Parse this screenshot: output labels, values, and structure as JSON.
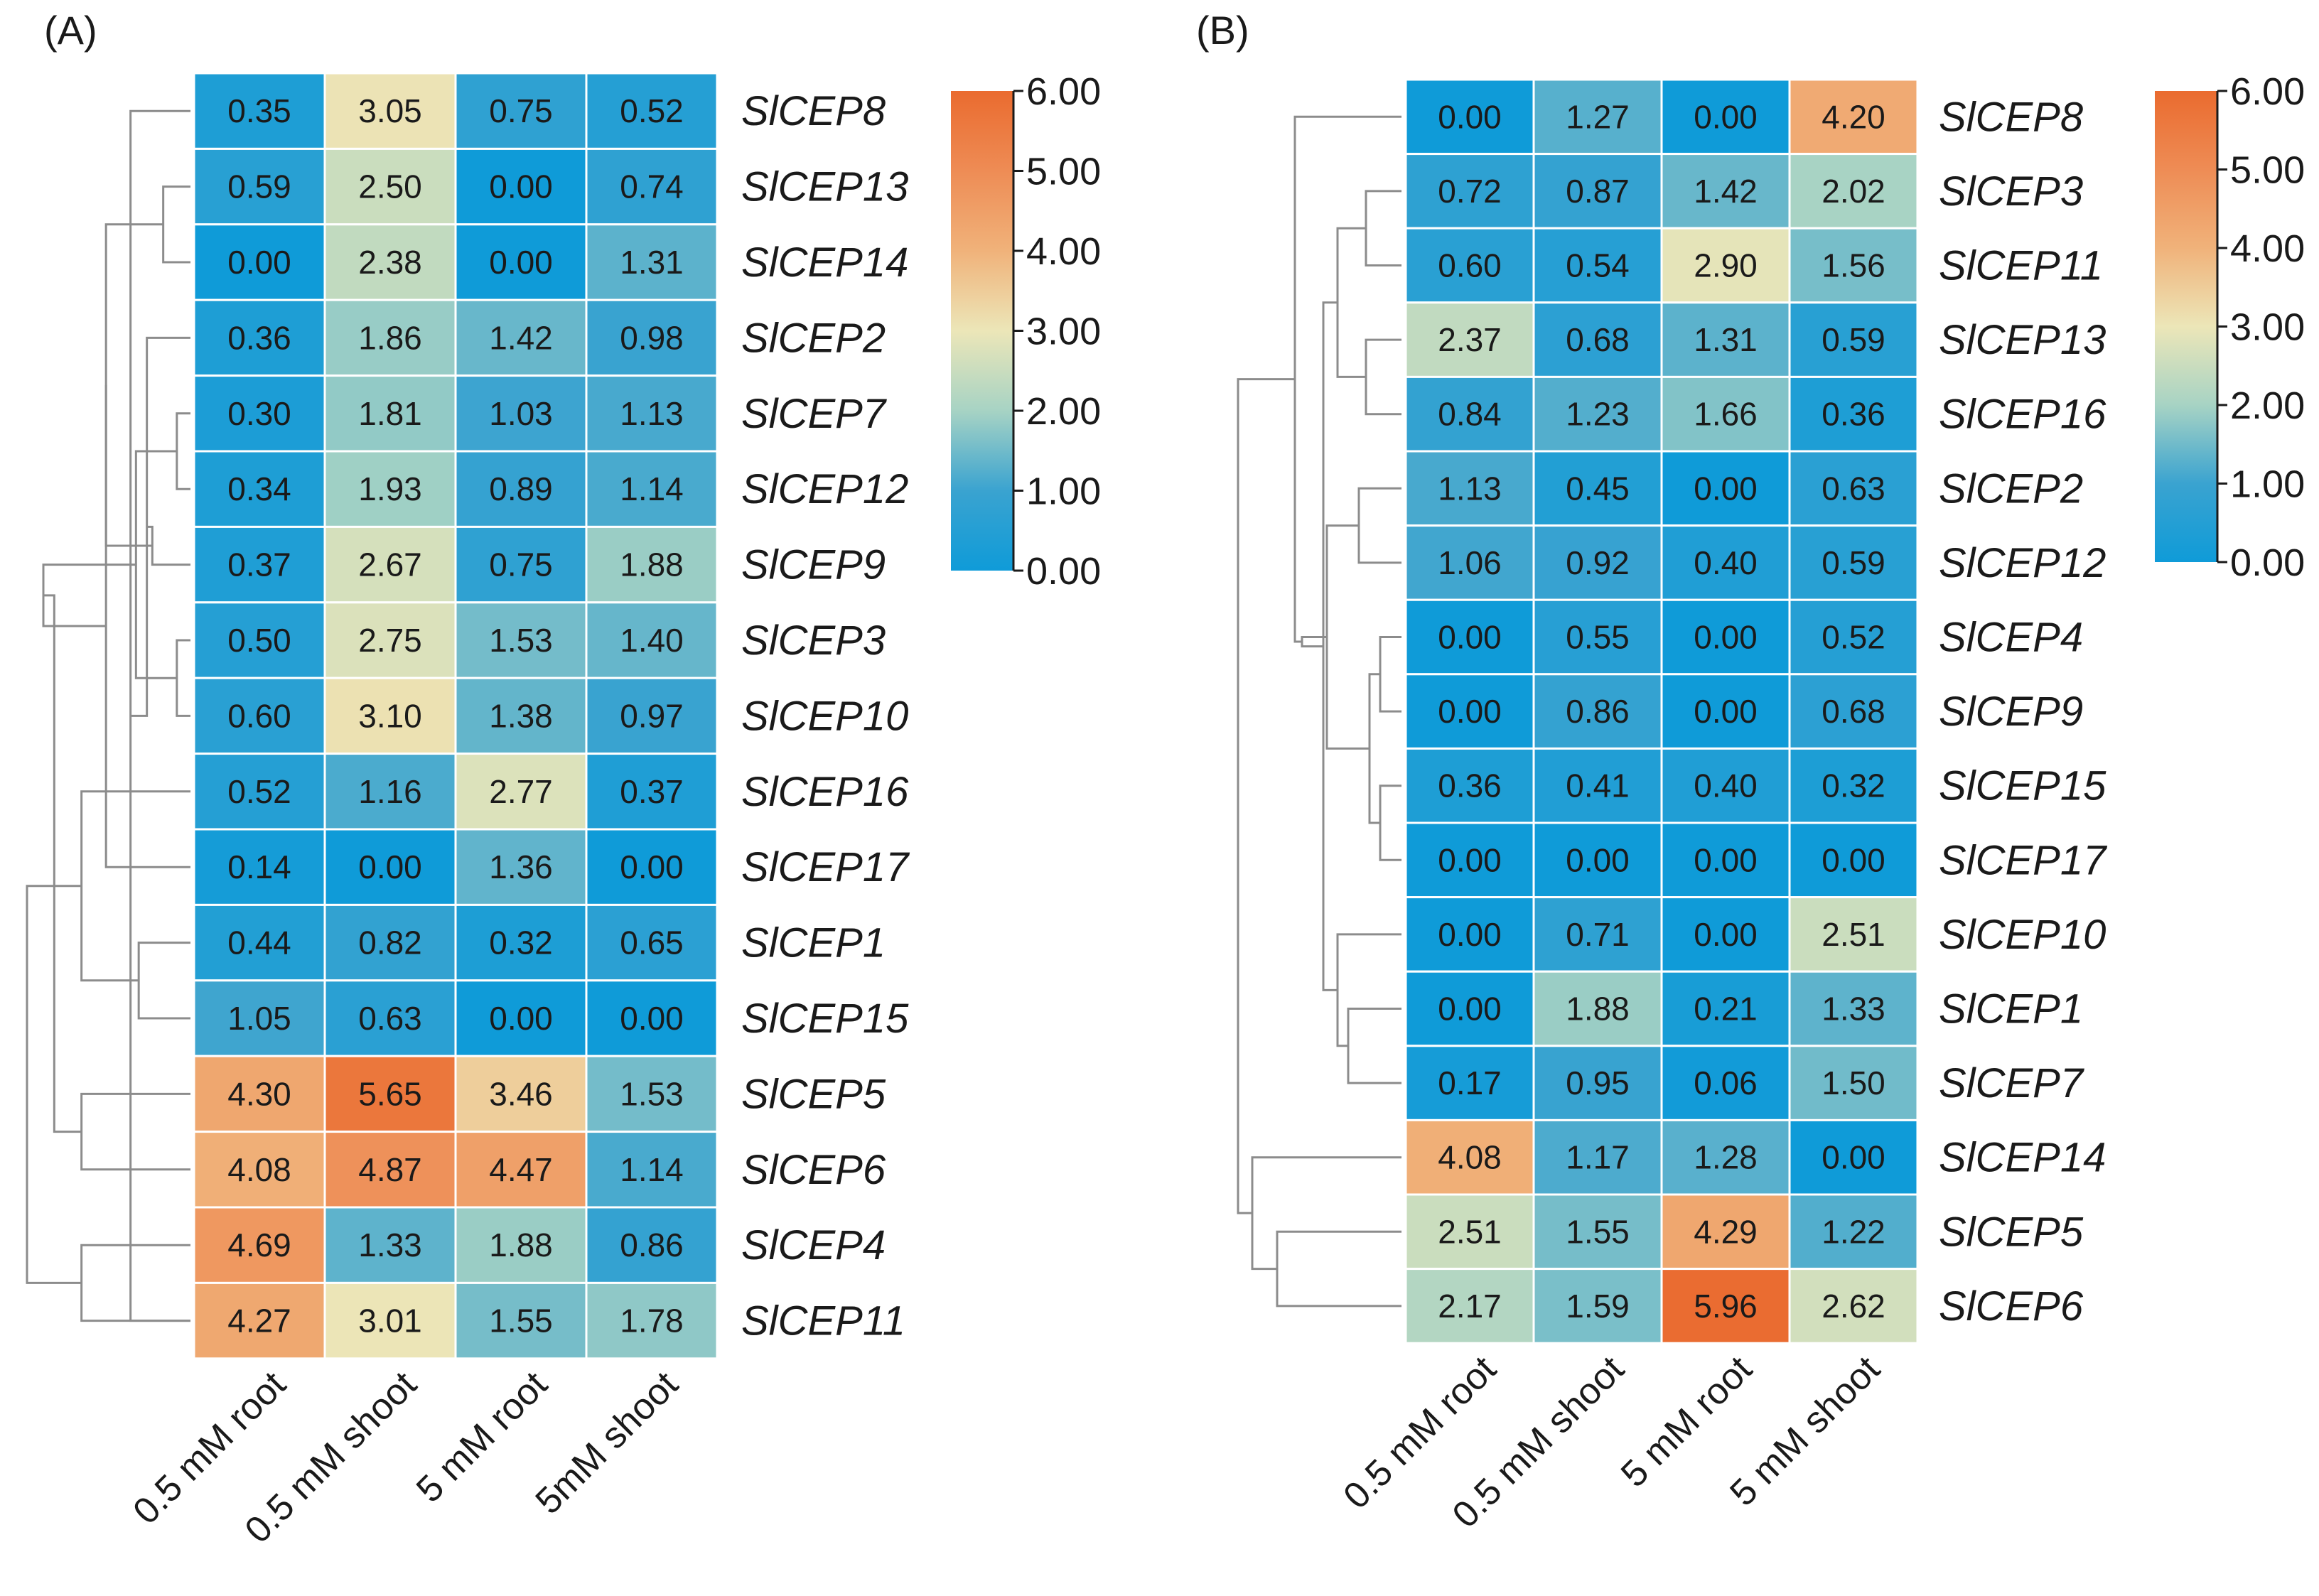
{
  "chart_data": [
    {
      "type": "heatmap",
      "panel_label": "(A)",
      "columns": [
        "0.5 mM root",
        "0.5 mM shoot",
        "5 mM root",
        "5mM shoot"
      ],
      "rows": [
        "SlCEP8",
        "SlCEP13",
        "SlCEP14",
        "SlCEP2",
        "SlCEP7",
        "SlCEP12",
        "SlCEP9",
        "SlCEP3",
        "SlCEP10",
        "SlCEP16",
        "SlCEP17",
        "SlCEP1",
        "SlCEP15",
        "SlCEP5",
        "SlCEP6",
        "SlCEP4",
        "SlCEP11"
      ],
      "values": [
        [
          0.35,
          3.05,
          0.75,
          0.52
        ],
        [
          0.59,
          2.5,
          0.0,
          0.74
        ],
        [
          0.0,
          2.38,
          0.0,
          1.31
        ],
        [
          0.36,
          1.86,
          1.42,
          0.98
        ],
        [
          0.3,
          1.81,
          1.03,
          1.13
        ],
        [
          0.34,
          1.93,
          0.89,
          1.14
        ],
        [
          0.37,
          2.67,
          0.75,
          1.88
        ],
        [
          0.5,
          2.75,
          1.53,
          1.4
        ],
        [
          0.6,
          3.1,
          1.38,
          0.97
        ],
        [
          0.52,
          1.16,
          2.77,
          0.37
        ],
        [
          0.14,
          0.0,
          1.36,
          0.0
        ],
        [
          0.44,
          0.82,
          0.32,
          0.65
        ],
        [
          1.05,
          0.63,
          0.0,
          0.0
        ],
        [
          4.3,
          5.65,
          3.46,
          1.53
        ],
        [
          4.08,
          4.87,
          4.47,
          1.14
        ],
        [
          4.69,
          1.33,
          1.88,
          0.86
        ],
        [
          4.27,
          3.01,
          1.55,
          1.78
        ]
      ],
      "colorbar": {
        "min": 0,
        "max": 6,
        "ticks": [
          "6.00",
          "5.00",
          "4.00",
          "3.00",
          "2.00",
          "1.00",
          "0.00"
        ]
      },
      "dendrogram": {
        "leaves": 17,
        "nodes": [
          [
            1,
            2,
            0.1
          ],
          [
            0,
            16,
            0.22
          ],
          [
            4,
            5,
            0.05
          ],
          [
            3,
            18,
            0.16
          ],
          [
            7,
            8,
            0.05
          ],
          [
            6,
            20,
            0.14
          ],
          [
            19,
            21,
            0.2
          ],
          [
            17,
            22,
            0.31
          ],
          [
            11,
            12,
            0.19
          ],
          [
            10,
            24,
            0.31
          ],
          [
            9,
            25,
            0.4
          ],
          [
            23,
            26,
            0.54
          ],
          [
            13,
            14,
            0.4
          ],
          [
            15,
            16,
            0.4
          ],
          [
            28,
            29,
            0.5
          ],
          [
            27,
            30,
            0.6
          ]
        ]
      }
    },
    {
      "type": "heatmap",
      "panel_label": "(B)",
      "columns": [
        "0.5 mM root",
        "0.5 mM shoot",
        "5 mM root",
        "5 mM shoot"
      ],
      "rows": [
        "SlCEP8",
        "SlCEP3",
        "SlCEP11",
        "SlCEP13",
        "SlCEP16",
        "SlCEP2",
        "SlCEP12",
        "SlCEP4",
        "SlCEP9",
        "SlCEP15",
        "SlCEP17",
        "SlCEP10",
        "SlCEP1",
        "SlCEP7",
        "SlCEP14",
        "SlCEP5",
        "SlCEP6"
      ],
      "values": [
        [
          0.0,
          1.27,
          0.0,
          4.2
        ],
        [
          0.72,
          0.87,
          1.42,
          2.02
        ],
        [
          0.6,
          0.54,
          2.9,
          1.56
        ],
        [
          2.37,
          0.68,
          1.31,
          0.59
        ],
        [
          0.84,
          1.23,
          1.66,
          0.36
        ],
        [
          1.13,
          0.45,
          0.0,
          0.63
        ],
        [
          1.06,
          0.92,
          0.4,
          0.59
        ],
        [
          0.0,
          0.55,
          0.0,
          0.52
        ],
        [
          0.0,
          0.86,
          0.0,
          0.68
        ],
        [
          0.36,
          0.41,
          0.4,
          0.32
        ],
        [
          0.0,
          0.0,
          0.0,
          0.0
        ],
        [
          0.0,
          0.71,
          0.0,
          2.51
        ],
        [
          0.0,
          1.88,
          0.21,
          1.33
        ],
        [
          0.17,
          0.95,
          0.06,
          1.5
        ],
        [
          4.08,
          1.17,
          1.28,
          0.0
        ],
        [
          2.51,
          1.55,
          4.29,
          1.22
        ],
        [
          2.17,
          1.59,
          5.96,
          2.62
        ]
      ],
      "colorbar": {
        "min": 0,
        "max": 6,
        "ticks": [
          "6.00",
          "5.00",
          "4.00",
          "3.00",
          "2.00",
          "1.00",
          "0.00"
        ]
      },
      "dendrogram": {
        "leaves": 17,
        "nodes": [
          [
            7,
            8,
            0.06
          ],
          [
            9,
            10,
            0.06
          ],
          [
            17,
            18,
            0.09
          ],
          [
            1,
            2,
            0.1
          ],
          [
            3,
            4,
            0.1
          ],
          [
            12,
            13,
            0.15
          ],
          [
            5,
            6,
            0.12
          ],
          [
            11,
            22,
            0.18
          ],
          [
            20,
            21,
            0.18
          ],
          [
            23,
            19,
            0.21
          ],
          [
            24,
            25,
            0.22
          ],
          [
            26,
            27,
            0.28
          ],
          [
            0,
            28,
            0.3
          ],
          [
            15,
            16,
            0.35
          ],
          [
            14,
            30,
            0.42
          ],
          [
            29,
            31,
            0.46
          ]
        ]
      }
    }
  ]
}
